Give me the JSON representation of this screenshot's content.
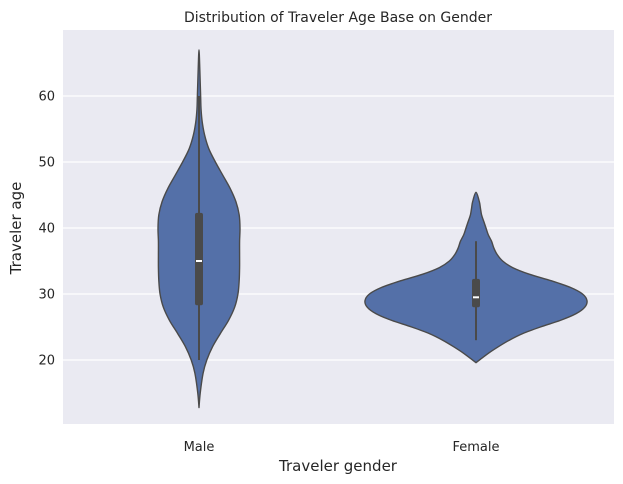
{
  "chart_data": {
    "type": "violin",
    "title": "Distribution of Traveler Age Base on Gender",
    "xlabel": "Traveler gender",
    "ylabel": "Traveler age",
    "categories": [
      "Male",
      "Female"
    ],
    "yticks": [
      20,
      30,
      40,
      50,
      60
    ],
    "ylim": [
      10,
      70
    ],
    "grid": "horizontal",
    "legend": "none",
    "colors": {
      "background": "#eaeaf2",
      "grid": "#ffffff",
      "violin_fill": "#5470a8",
      "violin_edge": "#4a4a4a",
      "box": "#4a4a4a",
      "median": "#ffffff"
    },
    "series": [
      {
        "category": "Male",
        "min": 20,
        "q1": 28.3,
        "median": 35,
        "q3": 42.3,
        "max": 60,
        "density": [
          [
            12.8,
            0.0
          ],
          [
            15,
            0.03
          ],
          [
            18,
            0.1
          ],
          [
            20,
            0.19
          ],
          [
            22,
            0.33
          ],
          [
            24,
            0.52
          ],
          [
            26,
            0.72
          ],
          [
            28,
            0.87
          ],
          [
            30,
            0.95
          ],
          [
            32,
            0.98
          ],
          [
            34,
            0.99
          ],
          [
            36,
            0.99
          ],
          [
            38,
            0.99
          ],
          [
            40,
            1.0
          ],
          [
            42,
            0.98
          ],
          [
            44,
            0.9
          ],
          [
            46,
            0.76
          ],
          [
            48,
            0.58
          ],
          [
            50,
            0.4
          ],
          [
            52,
            0.24
          ],
          [
            54,
            0.14
          ],
          [
            56,
            0.08
          ],
          [
            58,
            0.05
          ],
          [
            60,
            0.04
          ],
          [
            62,
            0.03
          ],
          [
            64,
            0.02
          ],
          [
            67,
            0.0
          ]
        ]
      },
      {
        "category": "Female",
        "min": 23,
        "q1": 28,
        "median": 29.5,
        "q3": 32.3,
        "max": 38,
        "density": [
          [
            19.6,
            0.0
          ],
          [
            21,
            0.11
          ],
          [
            22,
            0.2
          ],
          [
            23,
            0.3
          ],
          [
            24,
            0.42
          ],
          [
            25,
            0.58
          ],
          [
            26,
            0.76
          ],
          [
            27,
            0.9
          ],
          [
            28,
            0.98
          ],
          [
            29,
            1.0
          ],
          [
            30,
            0.96
          ],
          [
            31,
            0.85
          ],
          [
            32,
            0.68
          ],
          [
            33,
            0.48
          ],
          [
            34,
            0.33
          ],
          [
            35,
            0.24
          ],
          [
            36,
            0.19
          ],
          [
            37,
            0.16
          ],
          [
            38,
            0.14
          ],
          [
            39,
            0.11
          ],
          [
            40,
            0.09
          ],
          [
            41,
            0.07
          ],
          [
            42,
            0.05
          ],
          [
            43,
            0.04
          ],
          [
            44,
            0.03
          ],
          [
            45.4,
            0.0
          ]
        ]
      }
    ]
  }
}
